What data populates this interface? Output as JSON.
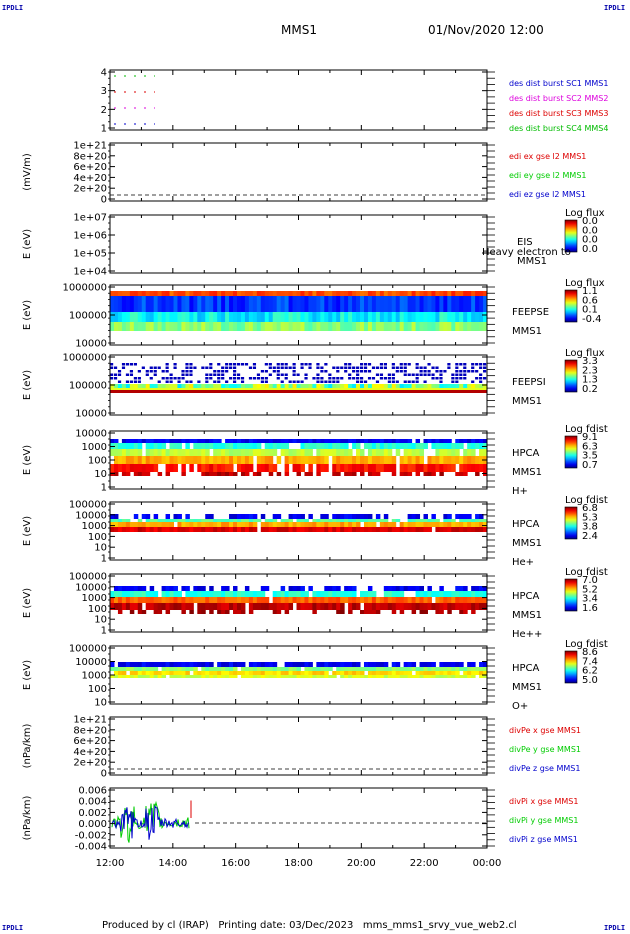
{
  "corners": {
    "tl": "IPDLI",
    "tr": "IPDLI",
    "bl": "IPDLI",
    "br": "IPDLI"
  },
  "header": {
    "title": "MMS1",
    "datetime": "01/Nov/2020 12:00"
  },
  "footer": "Produced by cl (IRAP)   Printing date: 03/Dec/2023   mms_mms1_srvy_vue_web2.cl",
  "colors": {
    "burst1": "#00bb00",
    "burst2": "#dd00dd",
    "burst3": "#dd0000",
    "burst4": "#0000cc",
    "red": "#dd0000",
    "green": "#00cc00",
    "blue": "#0000cc"
  },
  "chart_data": [
    {
      "type": "line",
      "ylabel": "",
      "yticks": [
        "4",
        "3",
        "2",
        "1"
      ],
      "series": [
        {
          "name": "des dist burst SC1 MMS1",
          "color": "#0000cc",
          "y": 1
        },
        {
          "name": "des dist burst SC2 MMS2",
          "color": "#dd00dd",
          "y": 2
        },
        {
          "name": "des dist burst SC3 MMS3",
          "color": "#dd0000",
          "y": 3
        },
        {
          "name": "des dist burst SC4 MMS4",
          "color": "#00bb00",
          "y": 4
        }
      ],
      "legend_colors": [
        "#0000cc",
        "#dd00dd",
        "#dd0000",
        "#00bb00"
      ],
      "legend": [
        "des dist burst SC1 MMS1",
        "des dist burst SC2 MMS2",
        "des dist burst SC3 MMS3",
        "des dist burst SC4 MMS4"
      ]
    },
    {
      "type": "line",
      "ylabel": "(mV/m)",
      "yticks": [
        "1e+21",
        "8e+20",
        "6e+20",
        "4e+20",
        "2e+20",
        "0"
      ],
      "legend": [
        "edi ex gse l2 MMS1",
        "edi ey gse l2 MMS1",
        "edi ez gse l2 MMS1"
      ]
    },
    {
      "type": "heatmap",
      "ylabel": "E (eV)",
      "yticks": [
        "1e+07",
        "1e+06",
        "1e+05",
        "1e+04"
      ],
      "labels": [
        "EIS",
        "MMS1"
      ],
      "note": "Heavy electron to",
      "cbar_title": "Log flux",
      "cbar_ticks": [
        "0.0",
        "0.0",
        "0.0",
        "0.0"
      ]
    },
    {
      "type": "heatmap",
      "ylabel": "E (eV)",
      "yticks": [
        "1000000",
        "100000",
        "10000"
      ],
      "labels": [
        "FEEPSE",
        "MMS1"
      ],
      "cbar_title": "Log flux",
      "cbar_ticks": [
        "1.1",
        "0.6",
        "0.1",
        "-0.4"
      ]
    },
    {
      "type": "heatmap",
      "ylabel": "E (eV)",
      "yticks": [
        "1000000",
        "100000",
        "10000"
      ],
      "labels": [
        "FEEPSI",
        "MMS1"
      ],
      "cbar_title": "Log flux",
      "cbar_ticks": [
        "3.3",
        "2.3",
        "1.3",
        "0.2"
      ]
    },
    {
      "type": "heatmap",
      "ylabel": "E (eV)",
      "yticks": [
        "10000",
        "1000",
        "100",
        "10",
        "1"
      ],
      "labels": [
        "HPCA",
        "MMS1",
        "H+"
      ],
      "cbar_title": "Log fdist",
      "cbar_ticks": [
        "9.1",
        "6.3",
        "3.5",
        "0.7"
      ]
    },
    {
      "type": "heatmap",
      "ylabel": "E (eV)",
      "yticks": [
        "100000",
        "10000",
        "1000",
        "100",
        "10",
        "1"
      ],
      "labels": [
        "HPCA",
        "MMS1",
        "He+"
      ],
      "cbar_title": "Log fdist",
      "cbar_ticks": [
        "6.8",
        "5.3",
        "3.8",
        "2.4"
      ]
    },
    {
      "type": "heatmap",
      "ylabel": "E (eV)",
      "yticks": [
        "100000",
        "10000",
        "1000",
        "100",
        "10",
        "1"
      ],
      "labels": [
        "HPCA",
        "MMS1",
        "He++"
      ],
      "cbar_title": "Log fdist",
      "cbar_ticks": [
        "7.0",
        "5.2",
        "3.4",
        "1.6"
      ]
    },
    {
      "type": "heatmap",
      "ylabel": "E (eV)",
      "yticks": [
        "100000",
        "10000",
        "1000",
        "100",
        "10"
      ],
      "labels": [
        "HPCA",
        "MMS1",
        "O+"
      ],
      "cbar_title": "Log fdist",
      "cbar_ticks": [
        "8.6",
        "7.4",
        "6.2",
        "5.0"
      ]
    },
    {
      "type": "line",
      "ylabel": "(nPa/km)",
      "yticks": [
        "1e+21",
        "8e+20",
        "6e+20",
        "4e+20",
        "2e+20",
        "0"
      ],
      "legend": [
        "divPe x gse MMS1",
        "divPe y gse MMS1",
        "divPe z gse MMS1"
      ]
    },
    {
      "type": "line",
      "ylabel": "(nPa/km)",
      "yticks": [
        "0.006",
        "0.004",
        "0.002",
        "0.000",
        "-0.002",
        "-0.004"
      ],
      "legend": [
        "divPi x gse MMS1",
        "divPi y gse MMS1",
        "divPi z gse MMS1"
      ],
      "xticks": [
        "12:00",
        "14:00",
        "16:00",
        "18:00",
        "20:00",
        "22:00",
        "00:00"
      ],
      "ylim": [
        -0.005,
        0.007
      ]
    }
  ]
}
